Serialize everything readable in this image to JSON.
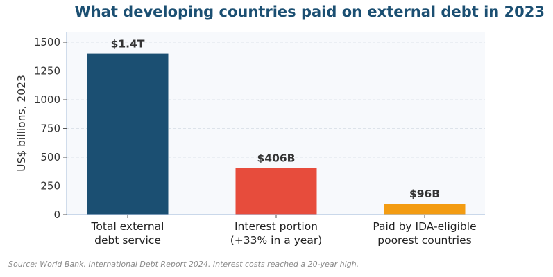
{
  "chart_data": {
    "type": "bar",
    "title": "What developing countries paid on external debt in 2023",
    "xlabel": "",
    "ylabel": "US$ billions, 2023",
    "categories": [
      [
        "Total external",
        "debt service"
      ],
      [
        "Interest portion",
        "(+33% in a year)"
      ],
      [
        "Paid by IDA-eligible",
        "poorest countries"
      ]
    ],
    "values": [
      1400,
      406,
      96
    ],
    "data_labels": [
      "$1.4T",
      "$406B",
      "$96B"
    ],
    "bar_colors": [
      "#1b4f72",
      "#e74c3c",
      "#f39c12"
    ],
    "ylim": [
      0,
      1600
    ],
    "yticks": [
      0,
      250,
      500,
      750,
      1000,
      1250,
      1500
    ],
    "grid": true,
    "legend": "none"
  },
  "footer": {
    "source": "Source: World Bank, International Debt Report 2024. Interest costs reached a 20-year high."
  }
}
